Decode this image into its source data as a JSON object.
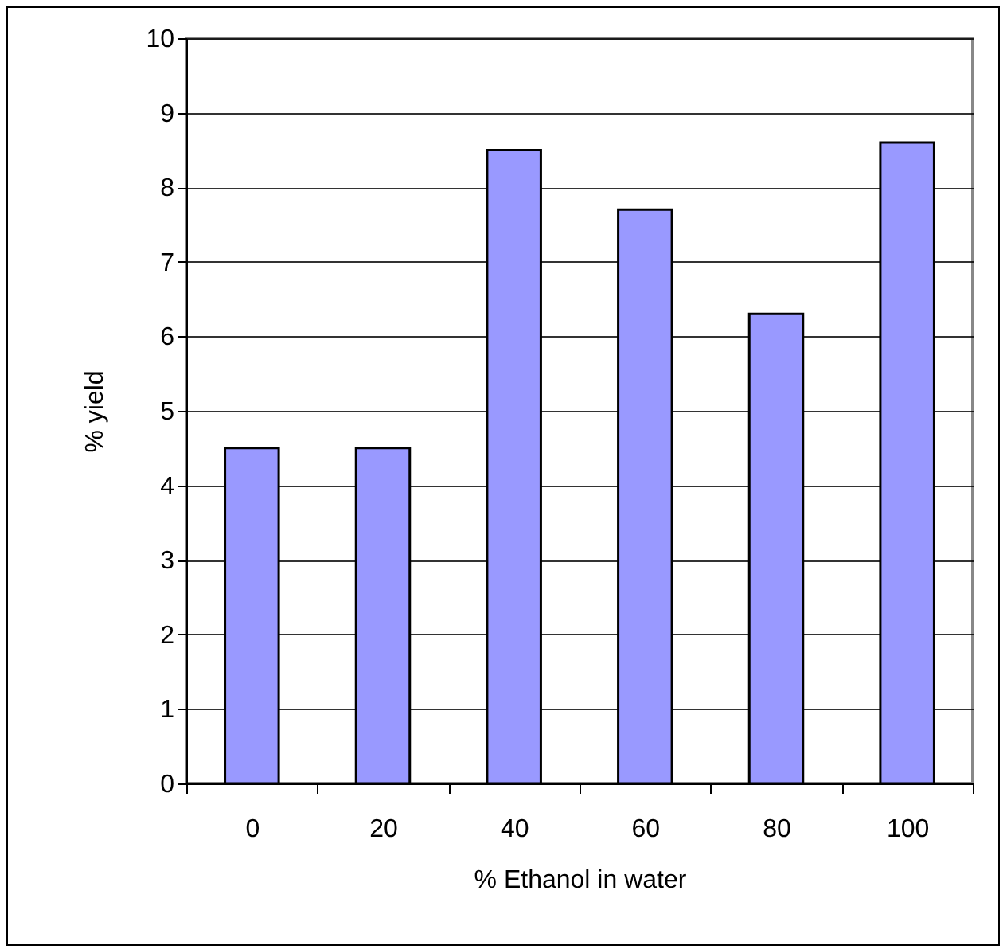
{
  "chart_data": {
    "type": "bar",
    "xlabel": "% Ethanol in water",
    "ylabel": "% yield",
    "categories": [
      "0",
      "20",
      "40",
      "60",
      "80",
      "100"
    ],
    "values": [
      4.5,
      4.5,
      8.5,
      7.7,
      6.3,
      8.6
    ],
    "color": "#9999ff",
    "ylim": [
      0,
      10
    ],
    "yticks": [
      0,
      1,
      2,
      3,
      4,
      5,
      6,
      7,
      8,
      9,
      10
    ],
    "grid": "y"
  }
}
